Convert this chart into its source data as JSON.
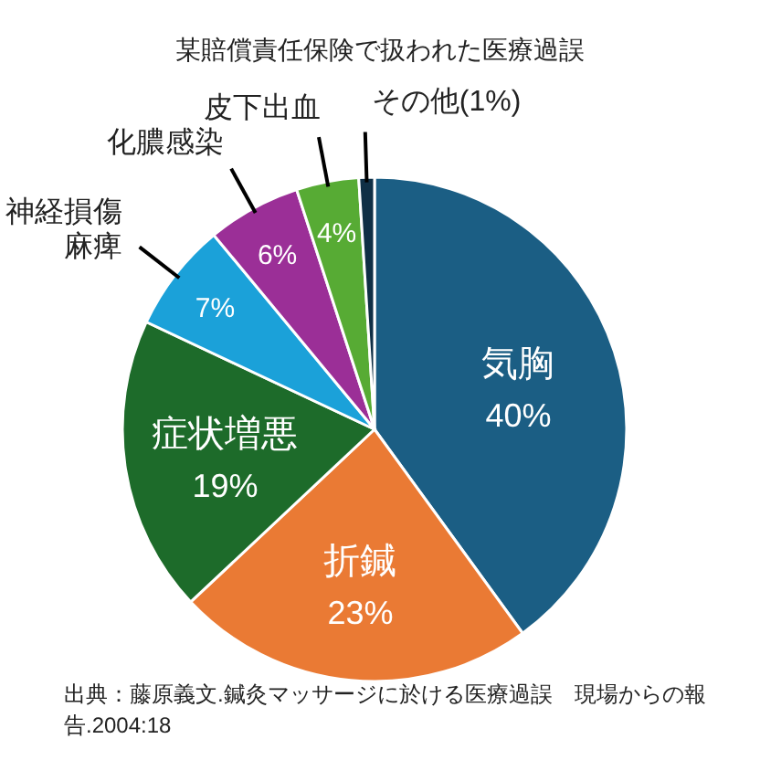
{
  "chart_data": {
    "type": "pie",
    "title": "某賠償責任保険で扱われた医療過誤",
    "categories": [
      "気胸",
      "折鍼",
      "症状増悪",
      "神経損傷麻痺",
      "化膿感染",
      "皮下出血",
      "その他"
    ],
    "values": [
      40,
      23,
      19,
      7,
      6,
      4,
      1
    ],
    "value_labels": [
      "40%",
      "23%",
      "19%",
      "7%",
      "6%",
      "4%",
      "(1%)"
    ],
    "colors": [
      "#1b5e84",
      "#ea7a34",
      "#1d6b2a",
      "#1ba1d9",
      "#9b2f97",
      "#57ab34",
      "#0f2f45"
    ],
    "annotations": [
      "出典：藤原義文.鍼灸マッサージに於ける医療過誤　現場からの報告.2004:18"
    ]
  }
}
